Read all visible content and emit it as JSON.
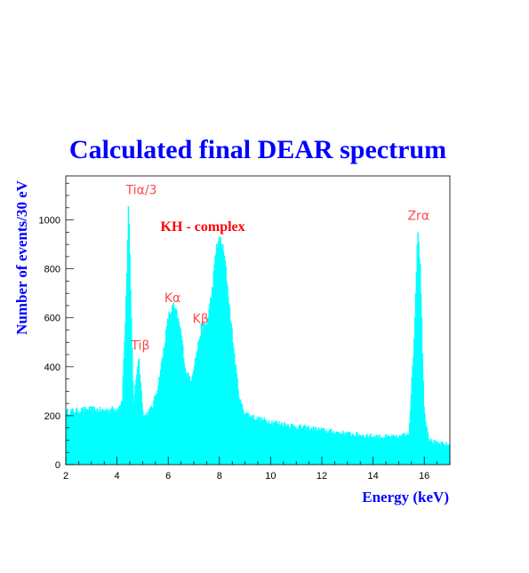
{
  "chart_data": {
    "type": "area",
    "title": "Calculated final DEAR spectrum",
    "xlabel": "Energy (keV)",
    "ylabel": "Number of events/30 eV",
    "xlim": [
      2,
      17
    ],
    "ylim": [
      0,
      1180
    ],
    "x_ticks": [
      2,
      4,
      6,
      8,
      10,
      12,
      14,
      16
    ],
    "y_ticks": [
      0,
      200,
      400,
      600,
      800,
      1000
    ],
    "grid": false,
    "fill_color": "#00ffff",
    "annotation_color": "#ff4a4a",
    "series": [
      {
        "x": [
          2.0,
          2.5,
          3.0,
          3.5,
          4.0,
          4.2,
          4.35,
          4.45,
          4.55,
          4.65,
          4.75,
          4.85,
          4.95,
          5.05,
          5.2,
          5.4,
          5.6,
          5.8,
          6.0,
          6.2,
          6.35,
          6.5,
          6.7,
          6.9,
          7.1,
          7.3,
          7.5,
          7.7,
          7.9,
          8.05,
          8.2,
          8.4,
          8.6,
          8.8,
          9.0,
          9.5,
          10.0,
          11.0,
          12.0,
          13.0,
          14.0,
          15.0,
          15.4,
          15.6,
          15.75,
          15.85,
          16.0,
          16.2,
          16.5,
          17.0
        ],
        "y": [
          215,
          220,
          225,
          220,
          228,
          260,
          650,
          1070,
          650,
          250,
          350,
          450,
          300,
          195,
          210,
          240,
          320,
          450,
          600,
          650,
          610,
          540,
          370,
          350,
          450,
          560,
          570,
          700,
          900,
          920,
          850,
          640,
          430,
          260,
          210,
          185,
          175,
          155,
          140,
          125,
          115,
          110,
          130,
          500,
          975,
          800,
          220,
          100,
          85,
          80
        ]
      }
    ],
    "annotations": [
      {
        "text": "Tiα/3",
        "x": 4.35,
        "y": 1105
      },
      {
        "text": "Tiβ",
        "x": 4.55,
        "y": 470
      },
      {
        "text": "Kα",
        "x": 5.85,
        "y": 665
      },
      {
        "text": "Kβ",
        "x": 6.95,
        "y": 580
      },
      {
        "text": "Zrα",
        "x": 15.35,
        "y": 1000
      },
      {
        "text": "KH - complex",
        "x": 5.7,
        "y": 955,
        "style": "complex"
      }
    ]
  }
}
